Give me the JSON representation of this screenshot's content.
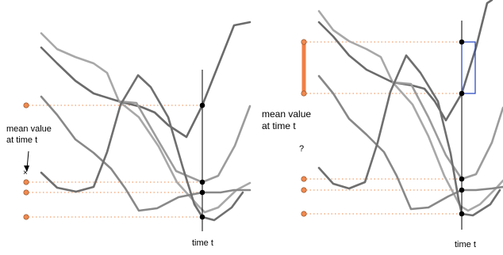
{
  "left_panel": {
    "annotation": [
      "mean value",
      "at time t"
    ],
    "time_label": "time t",
    "mean_marker": "×"
  },
  "right_panel": {
    "annotation": [
      "mean value",
      "at time t"
    ],
    "question": "?",
    "time_label": "time t"
  },
  "colors": {
    "curve_dark": "#6b6b6b",
    "curve_mid": "#8a8a8a",
    "curve_light": "#a8a8a8",
    "marker_orange": "#f08a50",
    "dotted_orange": "#f3a06d",
    "range_bar": "#f07f45",
    "box_blue": "#1f3fbf",
    "axis": "#000000"
  }
}
